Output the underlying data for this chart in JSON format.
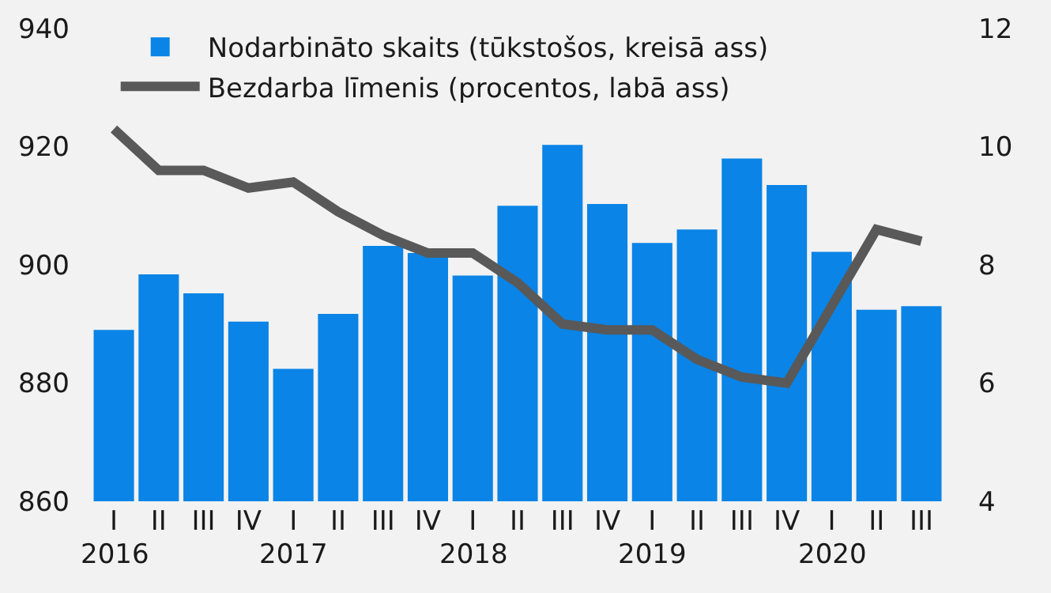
{
  "chart_data": {
    "type": "bar",
    "categories": [
      "I",
      "II",
      "III",
      "IV",
      "I",
      "II",
      "III",
      "IV",
      "I",
      "II",
      "III",
      "IV",
      "I",
      "II",
      "III",
      "IV",
      "I",
      "II",
      "III"
    ],
    "series": [
      {
        "name": "Nodarbināto skaits (tūkstošos, kreisā ass)",
        "color": "#0a84e6",
        "values": [
          889,
          898.4,
          895.2,
          890.4,
          882.4,
          891.7,
          903.2,
          902,
          898.2,
          910,
          920.3,
          910.3,
          903.7,
          906,
          918,
          913.5,
          902.2,
          892.4,
          893
        ]
      },
      {
        "name": "Bezdarba līmenis (procentos, labā ass)",
        "type": "line",
        "axis": "y2",
        "color": "#595959",
        "values": [
          10.3,
          9.6,
          9.6,
          9.3,
          9.4,
          8.9,
          8.5,
          8.2,
          8.2,
          7.7,
          7,
          6.9,
          6.9,
          6.4,
          6.1,
          6,
          7.3,
          8.6,
          8.4
        ]
      }
    ],
    "ylim": [
      860,
      940
    ],
    "yticks": [
      860,
      880,
      900,
      920,
      940
    ],
    "y2lim": [
      4,
      12
    ],
    "y2ticks": [
      4,
      6,
      8,
      10,
      12
    ],
    "annotations": [
      "2016",
      "2017",
      "2018",
      "2019",
      "2020"
    ],
    "grid": false,
    "legend": "top left",
    "marker": "none",
    "line_style": "solid"
  }
}
